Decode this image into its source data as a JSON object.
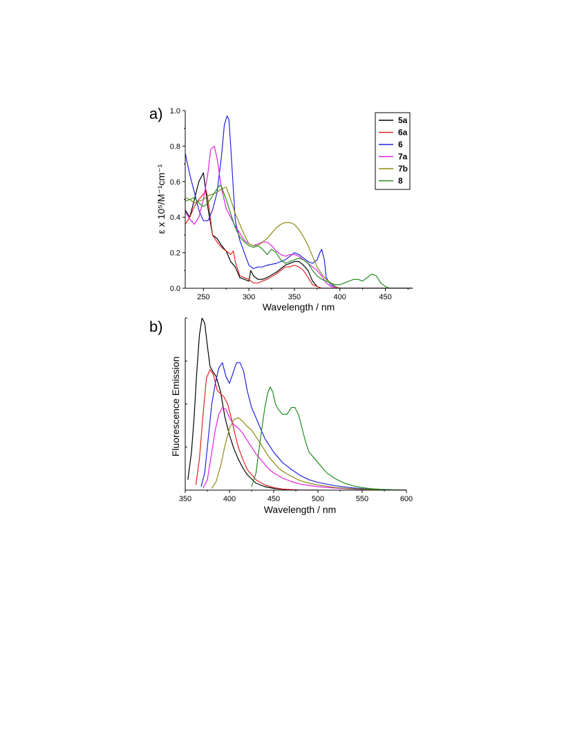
{
  "chart_data": [
    {
      "type": "line",
      "panel_label": "a)",
      "xlabel": "Wavelength / nm",
      "ylabel": "ε x 10⁵/M⁻¹cm⁻¹",
      "xlim": [
        230,
        480
      ],
      "ylim": [
        0.0,
        1.0
      ],
      "xticks": [
        "250",
        "300",
        "350",
        "400",
        "450"
      ],
      "yticks": [
        "0.0",
        "0.2",
        "0.4",
        "0.6",
        "0.8",
        "1.0"
      ],
      "legend": "top-right",
      "series": [
        {
          "name": "5a",
          "color": "#000000",
          "x": [
            230,
            235,
            240,
            245,
            250,
            255,
            260,
            265,
            270,
            275,
            280,
            285,
            290,
            295,
            300,
            302,
            305,
            310,
            315,
            320,
            330,
            340,
            350,
            355,
            360,
            365,
            370,
            375,
            380,
            390,
            400,
            420,
            450,
            480
          ],
          "y": [
            0.44,
            0.4,
            0.5,
            0.6,
            0.65,
            0.45,
            0.3,
            0.28,
            0.24,
            0.21,
            0.15,
            0.12,
            0.06,
            0.05,
            0.04,
            0.1,
            0.07,
            0.05,
            0.05,
            0.06,
            0.09,
            0.13,
            0.15,
            0.15,
            0.13,
            0.1,
            0.04,
            0.01,
            0.0,
            0.0,
            0.0,
            0.0,
            0.0,
            0.0
          ]
        },
        {
          "name": "6a",
          "color": "#e02020",
          "x": [
            230,
            235,
            240,
            245,
            250,
            253,
            255,
            260,
            265,
            270,
            275,
            280,
            283,
            285,
            290,
            295,
            300,
            305,
            310,
            315,
            320,
            330,
            340,
            345,
            350,
            355,
            360,
            365,
            370,
            375,
            380,
            390,
            400,
            450,
            480
          ],
          "y": [
            0.36,
            0.4,
            0.46,
            0.5,
            0.53,
            0.55,
            0.5,
            0.3,
            0.26,
            0.23,
            0.21,
            0.19,
            0.21,
            0.15,
            0.07,
            0.06,
            0.05,
            0.03,
            0.03,
            0.04,
            0.05,
            0.08,
            0.12,
            0.12,
            0.13,
            0.12,
            0.1,
            0.06,
            0.02,
            0.01,
            0.0,
            0.0,
            0.0,
            0.0,
            0.0
          ]
        },
        {
          "name": "6",
          "color": "#2020e0",
          "x": [
            230,
            235,
            240,
            245,
            250,
            255,
            260,
            265,
            270,
            273,
            276,
            278,
            280,
            283,
            285,
            290,
            295,
            300,
            305,
            310,
            315,
            320,
            330,
            340,
            345,
            350,
            355,
            360,
            365,
            370,
            375,
            378,
            380,
            383,
            385,
            390,
            400,
            450,
            480
          ],
          "y": [
            0.76,
            0.64,
            0.54,
            0.44,
            0.38,
            0.38,
            0.44,
            0.54,
            0.75,
            0.92,
            0.97,
            0.95,
            0.8,
            0.55,
            0.38,
            0.27,
            0.2,
            0.13,
            0.11,
            0.12,
            0.12,
            0.13,
            0.14,
            0.16,
            0.18,
            0.2,
            0.19,
            0.17,
            0.15,
            0.14,
            0.16,
            0.2,
            0.22,
            0.16,
            0.06,
            0.02,
            0.0,
            0.0,
            0.0
          ]
        },
        {
          "name": "7a",
          "color": "#e020e0",
          "x": [
            230,
            235,
            240,
            245,
            250,
            255,
            258,
            262,
            265,
            270,
            275,
            280,
            285,
            290,
            295,
            300,
            305,
            310,
            315,
            320,
            325,
            330,
            335,
            340,
            345,
            350,
            355,
            360,
            365,
            370,
            375,
            380,
            385,
            390,
            400,
            450,
            480
          ],
          "y": [
            0.43,
            0.39,
            0.36,
            0.4,
            0.5,
            0.65,
            0.78,
            0.8,
            0.73,
            0.56,
            0.45,
            0.4,
            0.35,
            0.31,
            0.27,
            0.25,
            0.24,
            0.25,
            0.26,
            0.26,
            0.24,
            0.21,
            0.19,
            0.18,
            0.19,
            0.19,
            0.18,
            0.16,
            0.14,
            0.12,
            0.1,
            0.07,
            0.03,
            0.01,
            0.0,
            0.0,
            0.0
          ]
        },
        {
          "name": "7b",
          "color": "#8a8a10",
          "x": [
            230,
            235,
            240,
            245,
            250,
            255,
            260,
            265,
            270,
            275,
            280,
            285,
            290,
            295,
            300,
            305,
            310,
            315,
            320,
            325,
            330,
            335,
            340,
            345,
            350,
            355,
            360,
            365,
            370,
            375,
            380,
            385,
            390,
            395,
            400,
            450,
            480
          ],
          "y": [
            0.51,
            0.5,
            0.48,
            0.49,
            0.5,
            0.52,
            0.53,
            0.54,
            0.56,
            0.57,
            0.5,
            0.42,
            0.36,
            0.3,
            0.25,
            0.24,
            0.24,
            0.26,
            0.28,
            0.31,
            0.34,
            0.36,
            0.37,
            0.37,
            0.36,
            0.33,
            0.29,
            0.24,
            0.18,
            0.12,
            0.08,
            0.05,
            0.03,
            0.01,
            0.0,
            0.0,
            0.0
          ]
        },
        {
          "name": "8",
          "color": "#208a20",
          "x": [
            230,
            235,
            240,
            245,
            250,
            255,
            260,
            265,
            268,
            270,
            275,
            280,
            285,
            290,
            295,
            300,
            305,
            310,
            315,
            320,
            325,
            330,
            335,
            340,
            345,
            350,
            355,
            360,
            365,
            370,
            375,
            380,
            385,
            390,
            395,
            400,
            405,
            410,
            415,
            420,
            425,
            430,
            435,
            440,
            445,
            450,
            455,
            460,
            480
          ],
          "y": [
            0.49,
            0.5,
            0.51,
            0.48,
            0.46,
            0.48,
            0.52,
            0.56,
            0.58,
            0.57,
            0.5,
            0.42,
            0.34,
            0.29,
            0.26,
            0.24,
            0.23,
            0.24,
            0.22,
            0.19,
            0.22,
            0.2,
            0.16,
            0.14,
            0.15,
            0.16,
            0.17,
            0.16,
            0.14,
            0.1,
            0.07,
            0.05,
            0.04,
            0.03,
            0.02,
            0.02,
            0.03,
            0.04,
            0.05,
            0.05,
            0.04,
            0.06,
            0.08,
            0.07,
            0.03,
            0.01,
            0.0,
            0.0,
            0.0
          ]
        }
      ]
    },
    {
      "type": "line",
      "panel_label": "b)",
      "xlabel": "Wavelength / nm",
      "ylabel": "Fluorescence Emission",
      "xlim": [
        350,
        600
      ],
      "ylim": [
        0,
        1.0
      ],
      "xticks": [
        "350",
        "400",
        "450",
        "500",
        "550",
        "600"
      ],
      "series": [
        {
          "color": "#000000",
          "x": [
            353,
            357,
            360,
            363,
            366,
            369,
            372,
            375,
            378,
            381,
            385,
            390,
            395,
            400,
            405,
            410,
            415,
            420,
            430,
            440,
            450,
            460,
            480,
            500
          ],
          "y": [
            0.06,
            0.22,
            0.42,
            0.68,
            0.9,
            1.0,
            0.97,
            0.84,
            0.72,
            0.69,
            0.66,
            0.57,
            0.42,
            0.32,
            0.24,
            0.18,
            0.13,
            0.09,
            0.04,
            0.02,
            0.01,
            0.005,
            0.0,
            0.0
          ]
        },
        {
          "color": "#e02020",
          "x": [
            362,
            366,
            370,
            374,
            378,
            382,
            386,
            390,
            394,
            398,
            402,
            406,
            410,
            415,
            420,
            430,
            440,
            450,
            460,
            480,
            500
          ],
          "y": [
            0.03,
            0.18,
            0.43,
            0.65,
            0.7,
            0.67,
            0.58,
            0.56,
            0.54,
            0.5,
            0.42,
            0.33,
            0.25,
            0.18,
            0.12,
            0.06,
            0.03,
            0.015,
            0.006,
            0.0,
            0.0
          ]
        },
        {
          "color": "#2020e0",
          "x": [
            368,
            372,
            376,
            380,
            384,
            388,
            392,
            396,
            400,
            404,
            408,
            412,
            416,
            420,
            425,
            430,
            435,
            440,
            445,
            450,
            455,
            460,
            470,
            480,
            490,
            500,
            520,
            540,
            560,
            580,
            600
          ],
          "y": [
            0.02,
            0.1,
            0.3,
            0.5,
            0.62,
            0.71,
            0.74,
            0.66,
            0.62,
            0.68,
            0.74,
            0.74,
            0.69,
            0.58,
            0.48,
            0.42,
            0.36,
            0.3,
            0.26,
            0.22,
            0.19,
            0.16,
            0.12,
            0.085,
            0.06,
            0.045,
            0.025,
            0.013,
            0.006,
            0.002,
            0.0
          ]
        },
        {
          "color": "#e020e0",
          "x": [
            370,
            375,
            380,
            384,
            388,
            392,
            396,
            400,
            405,
            410,
            415,
            420,
            425,
            430,
            435,
            440,
            445,
            450,
            460,
            470,
            480,
            500,
            520,
            540,
            560,
            580,
            600
          ],
          "y": [
            0.01,
            0.06,
            0.22,
            0.35,
            0.44,
            0.48,
            0.47,
            0.42,
            0.38,
            0.36,
            0.33,
            0.29,
            0.25,
            0.21,
            0.18,
            0.15,
            0.12,
            0.1,
            0.07,
            0.05,
            0.035,
            0.02,
            0.012,
            0.006,
            0.003,
            0.001,
            0.0
          ]
        },
        {
          "color": "#8a8a10",
          "x": [
            380,
            385,
            390,
            395,
            400,
            405,
            410,
            415,
            420,
            425,
            430,
            435,
            440,
            445,
            450,
            455,
            460,
            470,
            480,
            490,
            500,
            520,
            540,
            560,
            580,
            600
          ],
          "y": [
            0.01,
            0.05,
            0.14,
            0.26,
            0.36,
            0.41,
            0.42,
            0.4,
            0.37,
            0.35,
            0.31,
            0.27,
            0.23,
            0.19,
            0.16,
            0.13,
            0.11,
            0.08,
            0.055,
            0.04,
            0.03,
            0.015,
            0.008,
            0.004,
            0.002,
            0.0
          ]
        },
        {
          "color": "#208a20",
          "x": [
            425,
            430,
            435,
            440,
            443,
            446,
            449,
            452,
            455,
            460,
            465,
            470,
            474,
            478,
            482,
            486,
            490,
            495,
            500,
            505,
            510,
            520,
            530,
            540,
            550,
            560,
            570,
            580,
            590,
            600
          ],
          "y": [
            0.02,
            0.1,
            0.3,
            0.48,
            0.56,
            0.6,
            0.57,
            0.5,
            0.47,
            0.44,
            0.44,
            0.48,
            0.48,
            0.44,
            0.36,
            0.28,
            0.22,
            0.19,
            0.16,
            0.13,
            0.1,
            0.065,
            0.04,
            0.025,
            0.015,
            0.009,
            0.005,
            0.003,
            0.001,
            0.0
          ]
        }
      ]
    }
  ]
}
